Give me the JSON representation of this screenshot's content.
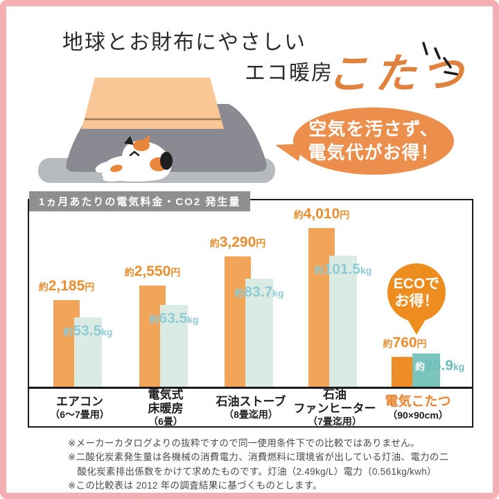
{
  "header": {
    "title_line": "地球とお財布にやさしい",
    "subtitle_prefix": "エコ暖房",
    "subtitle_main": "こたつ"
  },
  "speech_bubble": {
    "line1": "空気を汚さず、",
    "line2": "電気代がお得！"
  },
  "eco_badge": {
    "line1": "ECOで",
    "line2": "お得！"
  },
  "chart_data": {
    "type": "bar",
    "title": "1ヵ月あたりの電気料金・CO2 発生量",
    "approx_prefix": "約",
    "series": [
      {
        "key": "yen",
        "label": "電気料金",
        "unit": "円",
        "color": "#F2A458",
        "highlight_color": "#EE8D26"
      },
      {
        "key": "co2",
        "label": "CO2発生量",
        "unit": "kg",
        "color": "#DAEBE4",
        "highlight_color": "#7BC4BD"
      }
    ],
    "groups": [
      {
        "category_lines": [
          "エアコン",
          "（6～7畳用）"
        ],
        "yen_value": 2185,
        "yen_display": "2,185",
        "co2_value": 53.5,
        "co2_display": "53.5",
        "highlight": false
      },
      {
        "category_lines": [
          "電気式",
          "床暖房",
          "（6畳）"
        ],
        "yen_value": 2550,
        "yen_display": "2,550",
        "co2_value": 63.5,
        "co2_display": "63.5",
        "highlight": false
      },
      {
        "category_lines": [
          "石油ストーブ",
          "（8畳迄用）"
        ],
        "yen_value": 3290,
        "yen_display": "3,290",
        "co2_value": 83.7,
        "co2_display": "83.7",
        "highlight": false
      },
      {
        "category_lines": [
          "石油",
          "ファンヒーター",
          "（7畳迄用）"
        ],
        "yen_value": 4010,
        "yen_display": "4,010",
        "co2_value": 101.5,
        "co2_display": "101.5",
        "highlight": false
      },
      {
        "category_lines": [
          "電気こたつ",
          "（90×90cm）"
        ],
        "yen_value": 760,
        "yen_display": "760",
        "co2_value": 25.9,
        "co2_display": "25.9",
        "highlight": true
      }
    ]
  },
  "footnotes": [
    "※メーカーカタログよりの抜粋ですので同一使用条件下での比較ではありません。",
    "※二酸化炭素発生量は各機械の消費電力、消費燃料に環境省が出している灯油、電力の二酸化炭素排出係数をかけて求めたものです。灯油（2.49kg/L）電力（0.561kg/kwh）",
    "※この比較表は 2012 年の調査結果に基づくものとします。"
  ],
  "colors": {
    "frame_pink": "#F3AFB3",
    "accent_orange": "#EC8F4D",
    "eco_orange": "#EE8D1F",
    "yen_text": "#E98E2E",
    "co2_text": "#8FCBD4",
    "header_gray": "#8F8F8F"
  }
}
